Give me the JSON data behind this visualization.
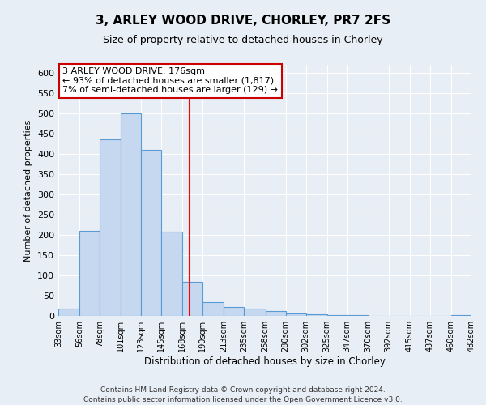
{
  "title": "3, ARLEY WOOD DRIVE, CHORLEY, PR7 2FS",
  "subtitle": "Size of property relative to detached houses in Chorley",
  "xlabel": "Distribution of detached houses by size in Chorley",
  "ylabel": "Number of detached properties",
  "footer_lines": [
    "Contains HM Land Registry data © Crown copyright and database right 2024.",
    "Contains public sector information licensed under the Open Government Licence v3.0."
  ],
  "bin_labels": [
    "33sqm",
    "56sqm",
    "78sqm",
    "101sqm",
    "123sqm",
    "145sqm",
    "168sqm",
    "190sqm",
    "213sqm",
    "235sqm",
    "258sqm",
    "280sqm",
    "302sqm",
    "325sqm",
    "347sqm",
    "370sqm",
    "392sqm",
    "415sqm",
    "437sqm",
    "460sqm",
    "482sqm"
  ],
  "bin_edges": [
    33,
    56,
    78,
    101,
    123,
    145,
    168,
    190,
    213,
    235,
    258,
    280,
    302,
    325,
    347,
    370,
    392,
    415,
    437,
    460,
    482
  ],
  "bar_heights": [
    18,
    210,
    437,
    500,
    410,
    208,
    85,
    35,
    22,
    18,
    13,
    7,
    5,
    3,
    2,
    1,
    0,
    0,
    0,
    2
  ],
  "bar_color": "#c5d8f0",
  "bar_edge_color": "#5b9bd5",
  "vline_color": "red",
  "vline_x": 176,
  "annotation_title": "3 ARLEY WOOD DRIVE: 176sqm",
  "annotation_line1": "← 93% of detached houses are smaller (1,817)",
  "annotation_line2": "7% of semi-detached houses are larger (129) →",
  "annotation_box_edge": "#cc0000",
  "annotation_box_face": "white",
  "ylim": [
    0,
    620
  ],
  "yticks": [
    0,
    50,
    100,
    150,
    200,
    250,
    300,
    350,
    400,
    450,
    500,
    550,
    600
  ],
  "bg_color": "#e8eef5",
  "plot_bg_color": "#e8eef5",
  "grid_color": "white",
  "title_fontsize": 11,
  "subtitle_fontsize": 9,
  "ylabel_fontsize": 8,
  "xlabel_fontsize": 8.5,
  "ytick_fontsize": 8,
  "xtick_fontsize": 7
}
